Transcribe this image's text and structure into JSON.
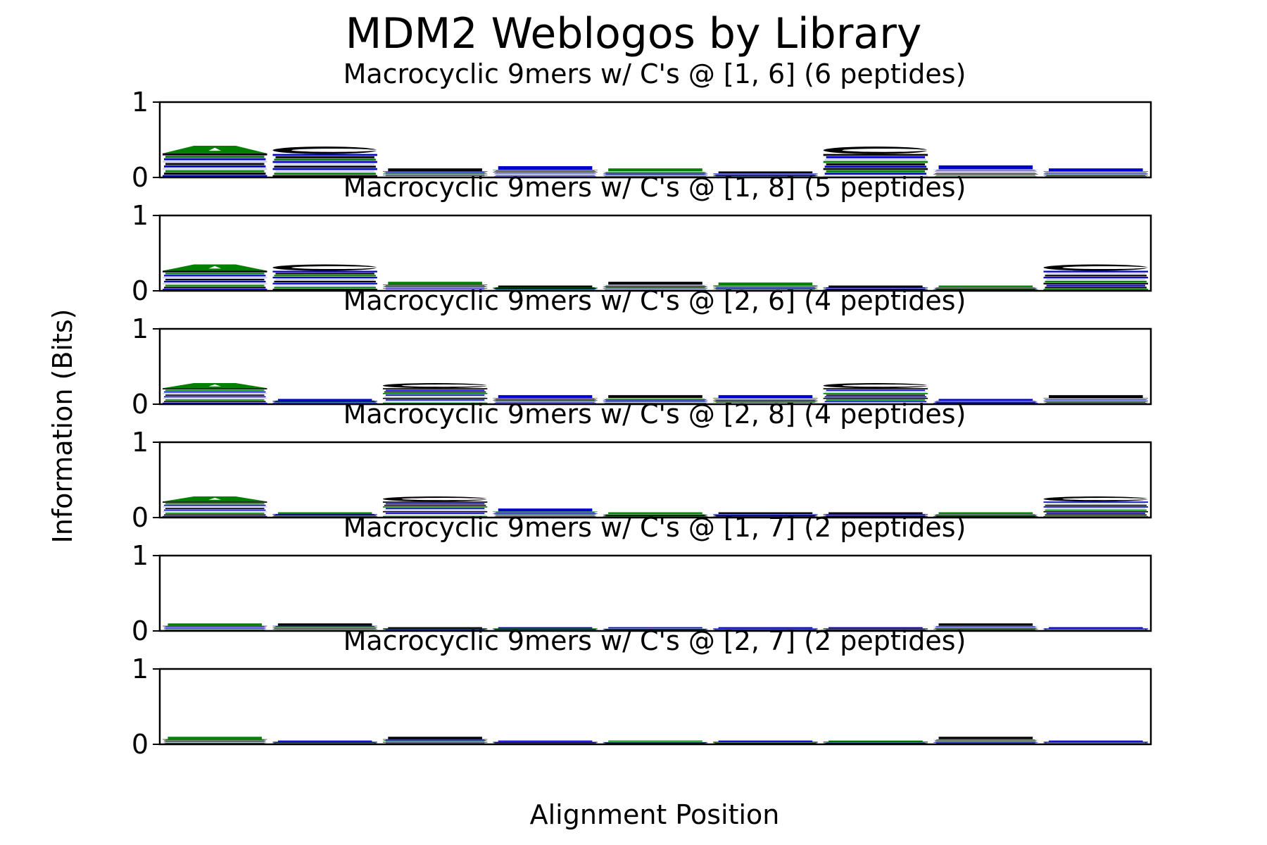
{
  "figure": {
    "title": "MDM2 Weblogos by Library",
    "xlabel": "Alignment Position",
    "ylabel": "Information (Bits)"
  },
  "colors": {
    "green": "#008000",
    "blue": "#0000cc",
    "black": "#000000",
    "light": "#cfd3ee"
  },
  "chart_data": [
    {
      "type": "bar",
      "title": "Macrocyclic 9mers w/ C's @ [1, 6] (6 peptides)",
      "ylim": [
        0,
        1
      ],
      "yticks": [
        "0",
        "1"
      ],
      "positions": 9,
      "series": [
        {
          "values": [
            0.42,
            0.41,
            0.12,
            0.15,
            0.12,
            0.08,
            0.41,
            0.16,
            0.12
          ],
          "top_color": [
            "green",
            "black",
            "black",
            "blue",
            "green",
            "black",
            "black",
            "blue",
            "blue"
          ]
        }
      ]
    },
    {
      "type": "bar",
      "title": "Macrocyclic 9mers w/ C's @ [1, 8] (5 peptides)",
      "ylim": [
        0,
        1
      ],
      "yticks": [
        "0",
        "1"
      ],
      "positions": 9,
      "series": [
        {
          "values": [
            0.35,
            0.35,
            0.12,
            0.07,
            0.12,
            0.11,
            0.07,
            0.07,
            0.35
          ],
          "top_color": [
            "green",
            "black",
            "green",
            "black",
            "black",
            "green",
            "black",
            "green",
            "black"
          ]
        }
      ]
    },
    {
      "type": "bar",
      "title": "Macrocyclic 9mers w/ C's @ [2, 6] (4 peptides)",
      "ylim": [
        0,
        1
      ],
      "yticks": [
        "0",
        "1"
      ],
      "positions": 9,
      "series": [
        {
          "values": [
            0.28,
            0.07,
            0.28,
            0.12,
            0.12,
            0.12,
            0.28,
            0.07,
            0.12
          ],
          "top_color": [
            "green",
            "blue",
            "black",
            "blue",
            "black",
            "blue",
            "black",
            "blue",
            "black"
          ]
        }
      ]
    },
    {
      "type": "bar",
      "title": "Macrocyclic 9mers w/ C's @ [2, 8] (4 peptides)",
      "ylim": [
        0,
        1
      ],
      "yticks": [
        "0",
        "1"
      ],
      "positions": 9,
      "series": [
        {
          "values": [
            0.28,
            0.07,
            0.28,
            0.12,
            0.07,
            0.07,
            0.07,
            0.07,
            0.28
          ],
          "top_color": [
            "green",
            "green",
            "black",
            "blue",
            "green",
            "black",
            "black",
            "green",
            "black"
          ]
        }
      ]
    },
    {
      "type": "bar",
      "title": "Macrocyclic 9mers w/ C's @ [1, 7] (2 peptides)",
      "ylim": [
        0,
        1
      ],
      "yticks": [
        "0",
        "1"
      ],
      "positions": 9,
      "series": [
        {
          "values": [
            0.1,
            0.1,
            0.05,
            0.05,
            0.05,
            0.05,
            0.05,
            0.1,
            0.05
          ],
          "top_color": [
            "green",
            "black",
            "black",
            "blue",
            "blue",
            "blue",
            "blue",
            "black",
            "blue"
          ]
        }
      ]
    },
    {
      "type": "bar",
      "title": "Macrocyclic 9mers w/ C's @ [2, 7] (2 peptides)",
      "ylim": [
        0,
        1
      ],
      "yticks": [
        "0",
        "1"
      ],
      "positions": 9,
      "series": [
        {
          "values": [
            0.1,
            0.05,
            0.1,
            0.05,
            0.05,
            0.05,
            0.05,
            0.1,
            0.05
          ],
          "top_color": [
            "green",
            "blue",
            "black",
            "blue",
            "green",
            "blue",
            "green",
            "black",
            "blue"
          ]
        }
      ]
    }
  ]
}
